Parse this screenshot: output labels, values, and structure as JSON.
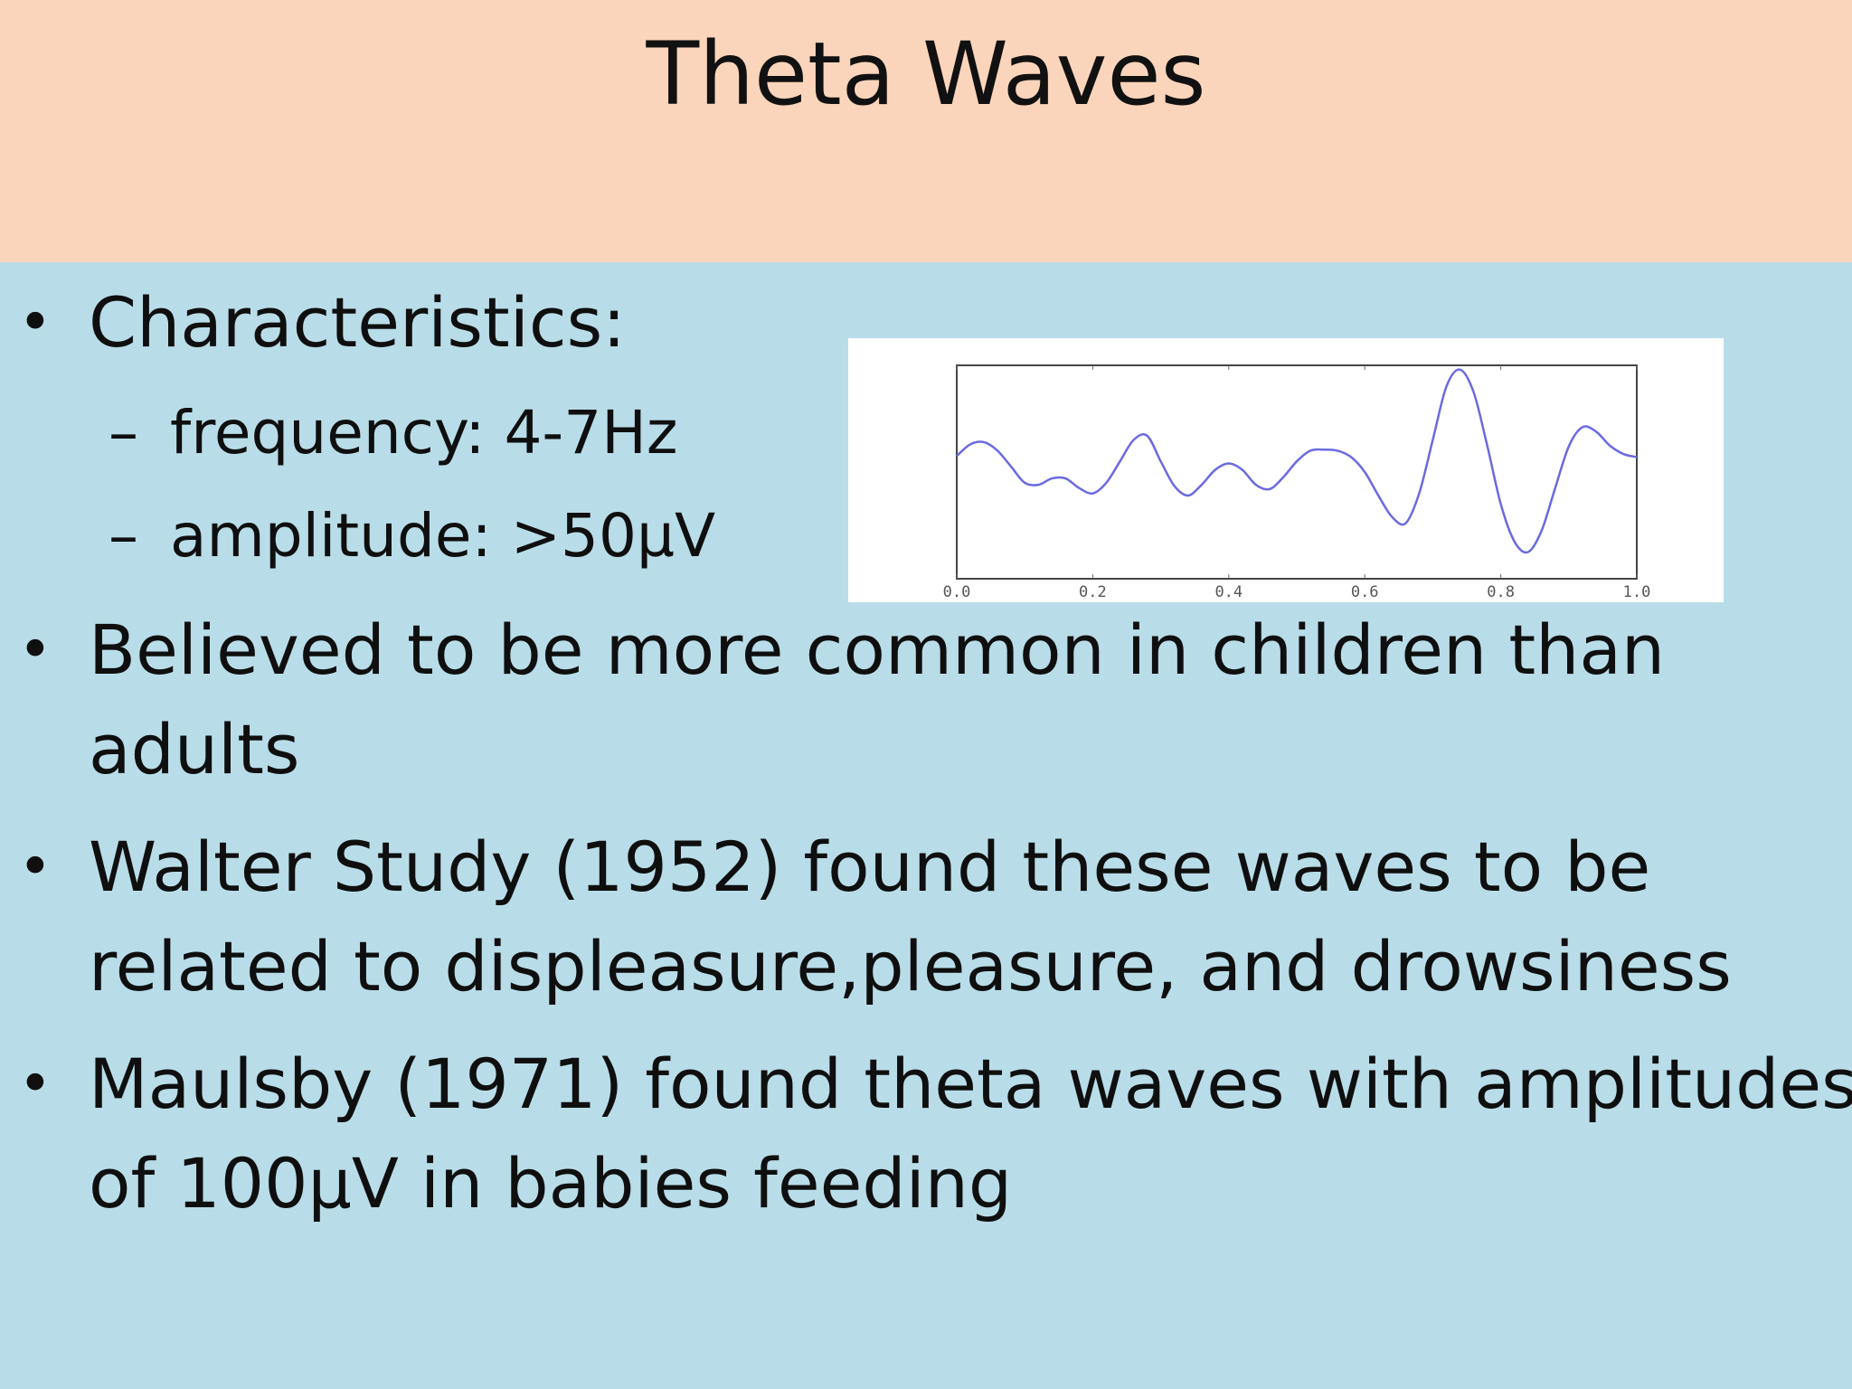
{
  "slide": {
    "title": "Theta Waves",
    "background_color": "#b8dde9",
    "title_band_color": "#fbd5bb"
  },
  "bullets": [
    {
      "text": "Characteristics:",
      "subitems": [
        {
          "dash": "–",
          "text": "frequency: 4-7Hz"
        },
        {
          "dash": "–",
          "text": "amplitude: >50µV"
        }
      ]
    },
    {
      "lines": [
        "Believed to be more common in children than",
        "adults"
      ]
    },
    {
      "lines": [
        "Walter Study (1952) found these waves to be",
        "related to displeasure,pleasure, and drowsiness"
      ]
    },
    {
      "lines": [
        "Maulsby (1971) found theta waves with amplitudes",
        "of 100µV in babies feeding"
      ]
    }
  ],
  "chart_data": {
    "type": "line",
    "xlim": [
      0.0,
      1.0
    ],
    "ylim": [
      -1.0,
      1.0
    ],
    "grid": false,
    "line_color": "#6a6ae0",
    "x_tick_labels": [
      "0.0",
      "0.2",
      "0.4",
      "0.6",
      "0.8",
      "1.0"
    ],
    "x": [
      0.0,
      0.02,
      0.04,
      0.06,
      0.08,
      0.1,
      0.12,
      0.14,
      0.16,
      0.18,
      0.2,
      0.22,
      0.24,
      0.26,
      0.28,
      0.3,
      0.32,
      0.34,
      0.36,
      0.38,
      0.4,
      0.42,
      0.44,
      0.46,
      0.48,
      0.5,
      0.52,
      0.54,
      0.56,
      0.58,
      0.6,
      0.62,
      0.64,
      0.66,
      0.68,
      0.7,
      0.72,
      0.74,
      0.76,
      0.78,
      0.8,
      0.82,
      0.84,
      0.86,
      0.88,
      0.9,
      0.92,
      0.94,
      0.96,
      0.98,
      1.0
    ],
    "y": [
      0.15,
      0.26,
      0.28,
      0.2,
      0.05,
      -0.1,
      -0.12,
      -0.06,
      -0.06,
      -0.15,
      -0.2,
      -0.1,
      0.1,
      0.3,
      0.34,
      0.1,
      -0.13,
      -0.22,
      -0.12,
      0.02,
      0.08,
      0.02,
      -0.12,
      -0.16,
      -0.05,
      0.1,
      0.2,
      0.21,
      0.2,
      0.14,
      0.0,
      -0.22,
      -0.42,
      -0.48,
      -0.2,
      0.3,
      0.8,
      0.96,
      0.75,
      0.25,
      -0.3,
      -0.65,
      -0.75,
      -0.55,
      -0.15,
      0.24,
      0.42,
      0.38,
      0.25,
      0.17,
      0.14
    ]
  }
}
